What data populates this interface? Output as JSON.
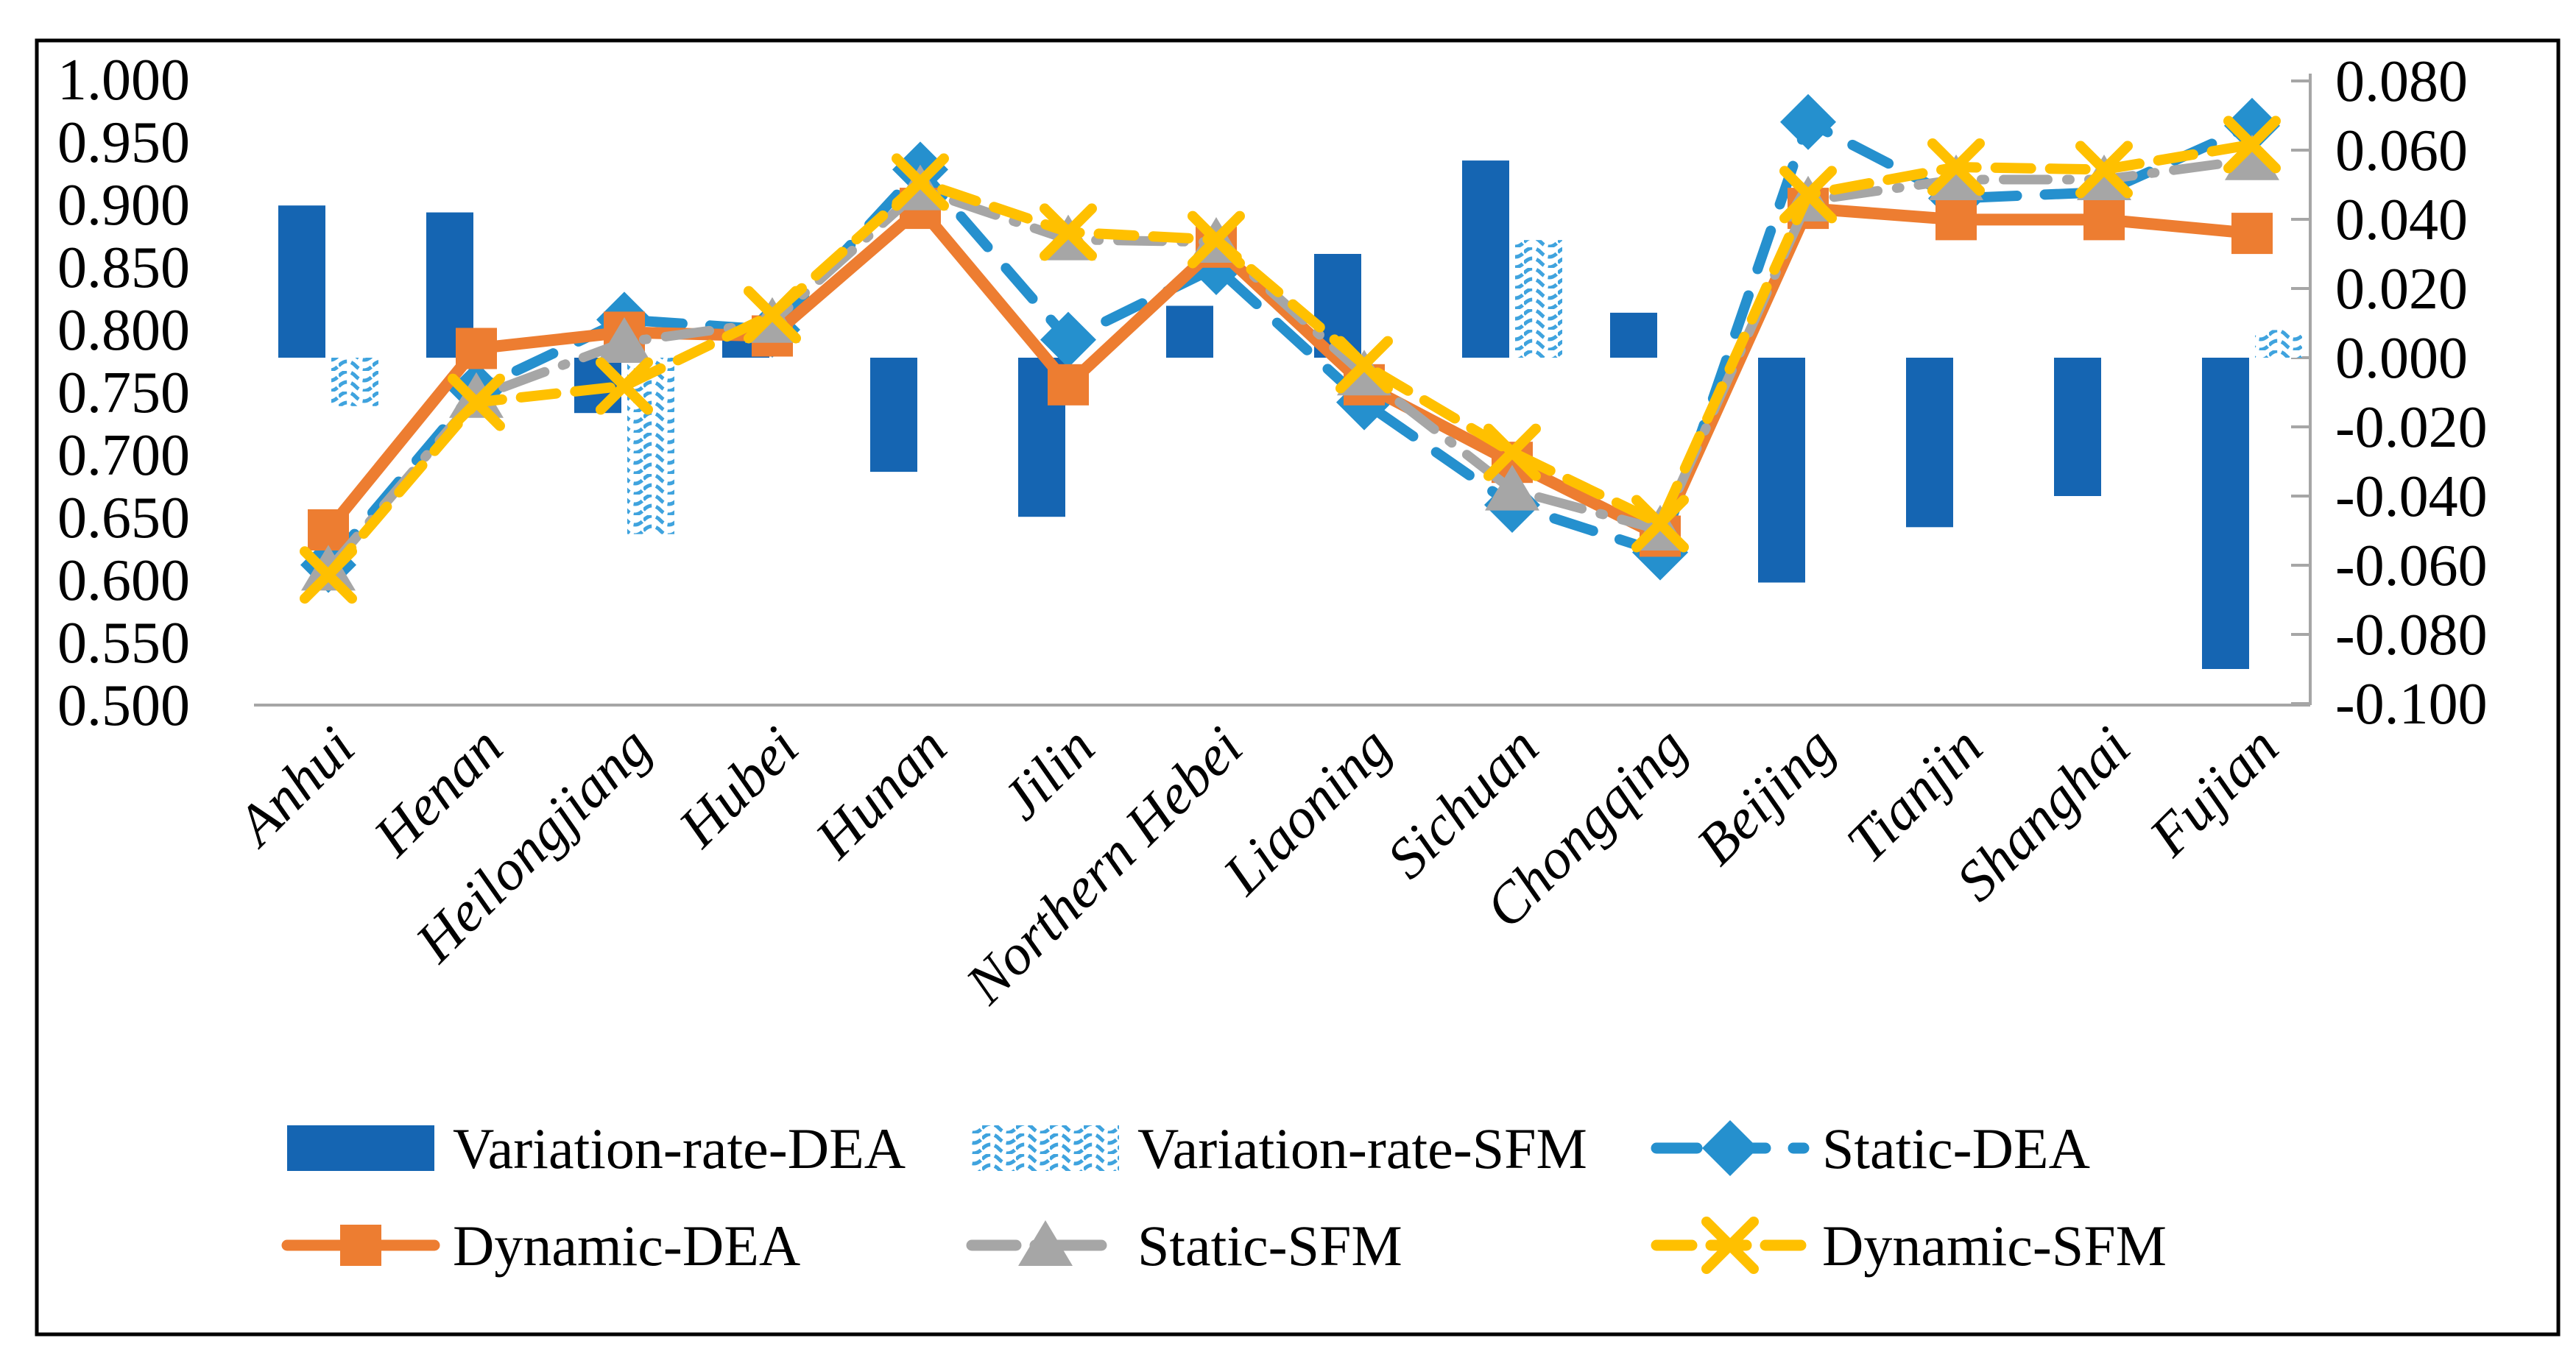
{
  "chart_data": {
    "type": "combo",
    "title": "",
    "categories": [
      "Anhui",
      "Henan",
      "Heilongjiang",
      "Hubei",
      "Hunan",
      "Jilin",
      "Northern Hebei",
      "Liaoning",
      "Sichuan",
      "Chongqing",
      "Beijing",
      "Tianjin",
      "Shanghai",
      "Fujian"
    ],
    "series": [
      {
        "name": "Variation-rate-DEA",
        "type": "bar",
        "axis": "right",
        "style": "solid",
        "values": [
          0.044,
          0.042,
          -0.016,
          0.005,
          -0.033,
          -0.046,
          0.015,
          0.03,
          0.057,
          0.013,
          -0.065,
          -0.049,
          -0.04,
          -0.09
        ]
      },
      {
        "name": "Variation-rate-SFM",
        "type": "bar",
        "axis": "right",
        "style": "pattern",
        "values": [
          -0.014,
          0,
          -0.051,
          0,
          0,
          0,
          0,
          0,
          0.034,
          0,
          0,
          0,
          0,
          0.008
        ]
      },
      {
        "name": "Static-DEA",
        "type": "line",
        "axis": "left",
        "marker": "diamond",
        "dash": "55 38",
        "values": [
          0.612,
          0.752,
          0.808,
          0.8,
          0.928,
          0.792,
          0.85,
          0.742,
          0.66,
          0.622,
          0.966,
          0.905,
          0.91,
          0.963
        ]
      },
      {
        "name": "Dynamic-DEA",
        "type": "line",
        "axis": "left",
        "marker": "square",
        "dash": "",
        "values": [
          0.64,
          0.785,
          0.798,
          0.795,
          0.897,
          0.756,
          0.866,
          0.756,
          0.694,
          0.635,
          0.897,
          0.888,
          0.888,
          0.877
        ]
      },
      {
        "name": "Static-SFM",
        "type": "line",
        "axis": "left",
        "marker": "triangle",
        "dash": "60 26 4 26",
        "values": [
          0.608,
          0.746,
          0.79,
          0.806,
          0.912,
          0.872,
          0.87,
          0.764,
          0.672,
          0.64,
          0.903,
          0.92,
          0.92,
          0.936
        ]
      },
      {
        "name": "Dynamic-SFM",
        "type": "line",
        "axis": "left",
        "marker": "x",
        "dash": "48 26",
        "values": [
          0.604,
          0.742,
          0.755,
          0.812,
          0.918,
          0.878,
          0.872,
          0.772,
          0.702,
          0.645,
          0.908,
          0.93,
          0.928,
          0.948
        ]
      }
    ],
    "axes": {
      "left": {
        "min": 0.5,
        "max": 1.0,
        "ticks": [
          "1.000",
          "0.950",
          "0.900",
          "0.850",
          "0.800",
          "0.750",
          "0.700",
          "0.650",
          "0.600",
          "0.550",
          "0.500"
        ]
      },
      "right": {
        "min": -0.1,
        "max": 0.08,
        "ticks": [
          "0.080",
          "0.060",
          "0.040",
          "0.020",
          "0.000",
          "-0.020",
          "-0.040",
          "-0.060",
          "-0.080",
          "-0.100"
        ]
      }
    },
    "legend": {
      "items": [
        {
          "label": "Variation-rate-DEA",
          "swatch": "bar-solid",
          "row": 0,
          "col": 0
        },
        {
          "label": "Variation-rate-SFM",
          "swatch": "bar-pattern",
          "row": 0,
          "col": 1
        },
        {
          "label": "Static-DEA",
          "swatch": "line-diamond",
          "row": 0,
          "col": 2
        },
        {
          "label": "Dynamic-DEA",
          "swatch": "line-square",
          "row": 1,
          "col": 0
        },
        {
          "label": "Static-SFM",
          "swatch": "line-triangle",
          "row": 1,
          "col": 1
        },
        {
          "label": "Dynamic-SFM",
          "swatch": "line-x",
          "row": 1,
          "col": 2
        }
      ]
    },
    "colors": {
      "variation_dea": "#1565B2",
      "variation_sfm": "#3FA3DE",
      "static_dea": "#2590CE",
      "dynamic_dea": "#ED7D31",
      "static_sfm": "#A6A6A6",
      "dynamic_sfm": "#FFC000",
      "axis": "#A6A6A6",
      "border": "#000000"
    },
    "layout_hints": {
      "grid": "off",
      "legend_position": "bottom",
      "x_label_rotation": 45
    }
  }
}
